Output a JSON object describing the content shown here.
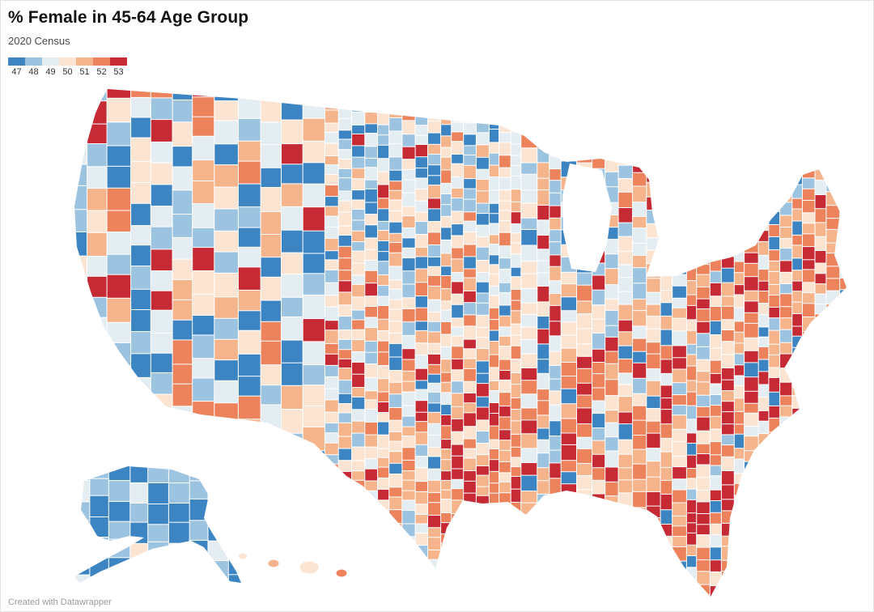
{
  "header": {
    "title": "% Female in 45-64 Age Group",
    "subtitle": "2020 Census"
  },
  "legend": {
    "ticks": [
      "47",
      "48",
      "49",
      "50",
      "51",
      "52",
      "53"
    ],
    "colors": [
      "#3d85c2",
      "#9cc3df",
      "#e4edf2",
      "#fce4d3",
      "#f5b48c",
      "#ec835d",
      "#c52a35"
    ]
  },
  "map": {
    "type": "choropleth",
    "region": "United States counties (incl. Alaska and Hawaii)",
    "value_label": "% female, ages 45-64",
    "scale_min": 47,
    "scale_max": 53,
    "county_border_color": "#ffffff",
    "background_color": "#ffffff"
  },
  "footer": {
    "credit": "Created with Datawrapper"
  }
}
